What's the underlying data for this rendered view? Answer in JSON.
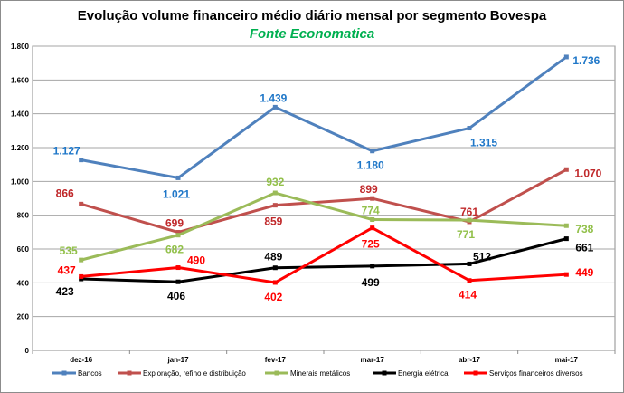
{
  "chart_data": {
    "type": "line",
    "title": "Evolução volume financeiro médio diário mensal  por segmento Bovespa",
    "subtitle": "Fonte Economatica",
    "subtitle_color": "#00b050",
    "categories": [
      "dez-16",
      "jan-17",
      "fev-17",
      "mar-17",
      "abr-17",
      "mai-17"
    ],
    "ylim": [
      0,
      1800
    ],
    "yticks": [
      0,
      200,
      400,
      600,
      800,
      1000,
      1200,
      1400,
      1600,
      1800
    ],
    "ytick_labels": [
      "0",
      "200",
      "400",
      "600",
      "800",
      "1.000",
      "1.200",
      "1.400",
      "1.600",
      "1.800"
    ],
    "grid": true,
    "legend_position": "bottom",
    "series": [
      {
        "name": "Bancos",
        "color": "#4f81bd",
        "label_color": "#1f77c8",
        "values": [
          1127,
          1021,
          1439,
          1180,
          1315,
          1736
        ],
        "labels": [
          "1.127",
          "1.021",
          "1.439",
          "1.180",
          "1.315",
          "1.736"
        ]
      },
      {
        "name": "Exploração, refino e distribuição",
        "color": "#c0504d",
        "label_color": "#c0282a",
        "values": [
          866,
          699,
          859,
          899,
          761,
          1070
        ],
        "labels": [
          "866",
          "699",
          "859",
          "899",
          "761",
          "1.070"
        ]
      },
      {
        "name": "Minerais metálicos",
        "color": "#9bbb59",
        "label_color": "#92c04a",
        "values": [
          535,
          682,
          932,
          774,
          771,
          738
        ],
        "labels": [
          "535",
          "682",
          "932",
          "774",
          "771",
          "738"
        ]
      },
      {
        "name": "Energia elétrica",
        "color": "#000000",
        "label_color": "#000000",
        "values": [
          423,
          406,
          489,
          499,
          512,
          661
        ],
        "labels": [
          "423",
          "406",
          "489",
          "499",
          "512",
          "661"
        ]
      },
      {
        "name": "Serviços financeiros diversos",
        "color": "#ff0000",
        "label_color": "#ff0000",
        "values": [
          437,
          490,
          402,
          725,
          414,
          449
        ],
        "labels": [
          "437",
          "490",
          "402",
          "725",
          "414",
          "449"
        ]
      }
    ]
  }
}
